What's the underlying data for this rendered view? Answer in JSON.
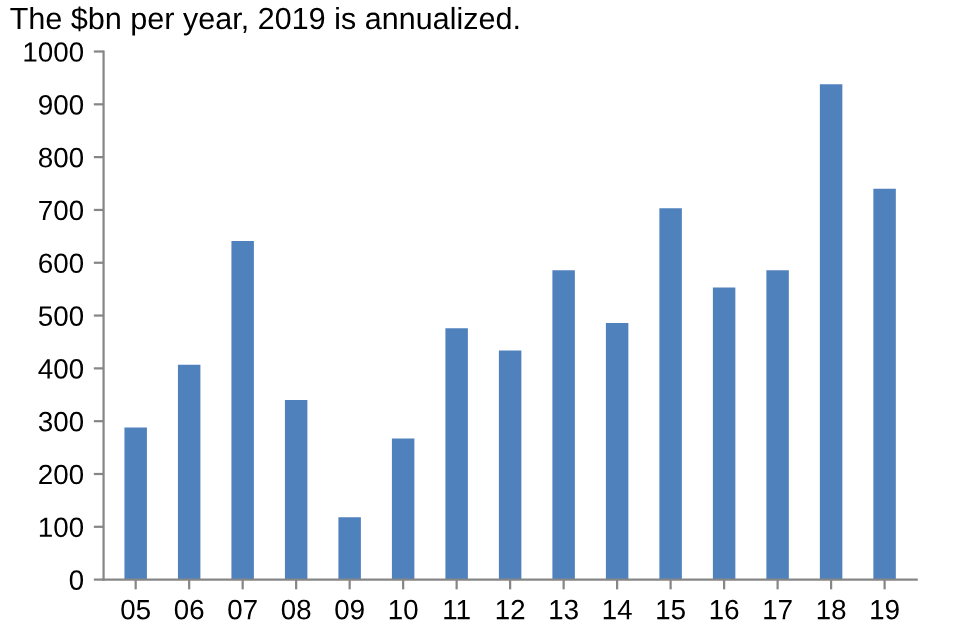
{
  "chart_data": {
    "type": "bar",
    "title": "The $bn per year, 2019 is annualized.",
    "categories": [
      "05",
      "06",
      "07",
      "08",
      "09",
      "10",
      "11",
      "12",
      "13",
      "14",
      "15",
      "16",
      "17",
      "18",
      "19"
    ],
    "values": [
      288,
      407,
      641,
      340,
      118,
      267,
      476,
      434,
      586,
      486,
      703,
      553,
      586,
      938,
      740
    ],
    "color": "#4f81bd",
    "ylim": [
      0,
      1000
    ],
    "yticks": [
      0,
      100,
      200,
      300,
      400,
      500,
      600,
      700,
      800,
      900,
      1000
    ],
    "grid": false
  }
}
